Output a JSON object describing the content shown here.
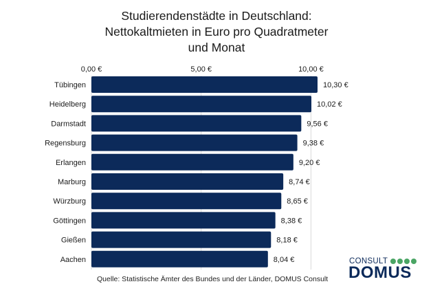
{
  "chart_data": {
    "type": "bar",
    "orientation": "horizontal",
    "title_lines": [
      "Studierendenstädte in Deutschland:",
      "Nettokaltmieten in Euro pro Quadratmeter",
      "und Monat"
    ],
    "categories": [
      "Tübingen",
      "Heidelberg",
      "Darmstadt",
      "Regensburg",
      "Erlangen",
      "Marburg",
      "Würzburg",
      "Göttingen",
      "Gießen",
      "Aachen"
    ],
    "values": [
      10.3,
      10.02,
      9.56,
      9.38,
      9.2,
      8.74,
      8.65,
      8.38,
      8.18,
      8.04
    ],
    "value_labels": [
      "10,30 €",
      "10,02 €",
      "9,56 €",
      "9,38 €",
      "9,20 €",
      "8,74 €",
      "8,65 €",
      "8,38 €",
      "8,18 €",
      "8,04 €"
    ],
    "x_ticks": [
      0,
      5,
      10
    ],
    "x_tick_labels": [
      "0,00 €",
      "5,00 €",
      "10,00 €"
    ],
    "xlim": [
      0,
      10.3
    ],
    "axis_position": "top",
    "grid": true,
    "bar_color": "#0c2a5a",
    "source": "Quelle: Statistische Ämter des Bundes und der Länder, DOMUS Consult"
  },
  "logo": {
    "consult": "CONSULT",
    "domus": "DOMUS",
    "brand_color": "#0c2a5a",
    "dot_color": "#4aa564"
  }
}
